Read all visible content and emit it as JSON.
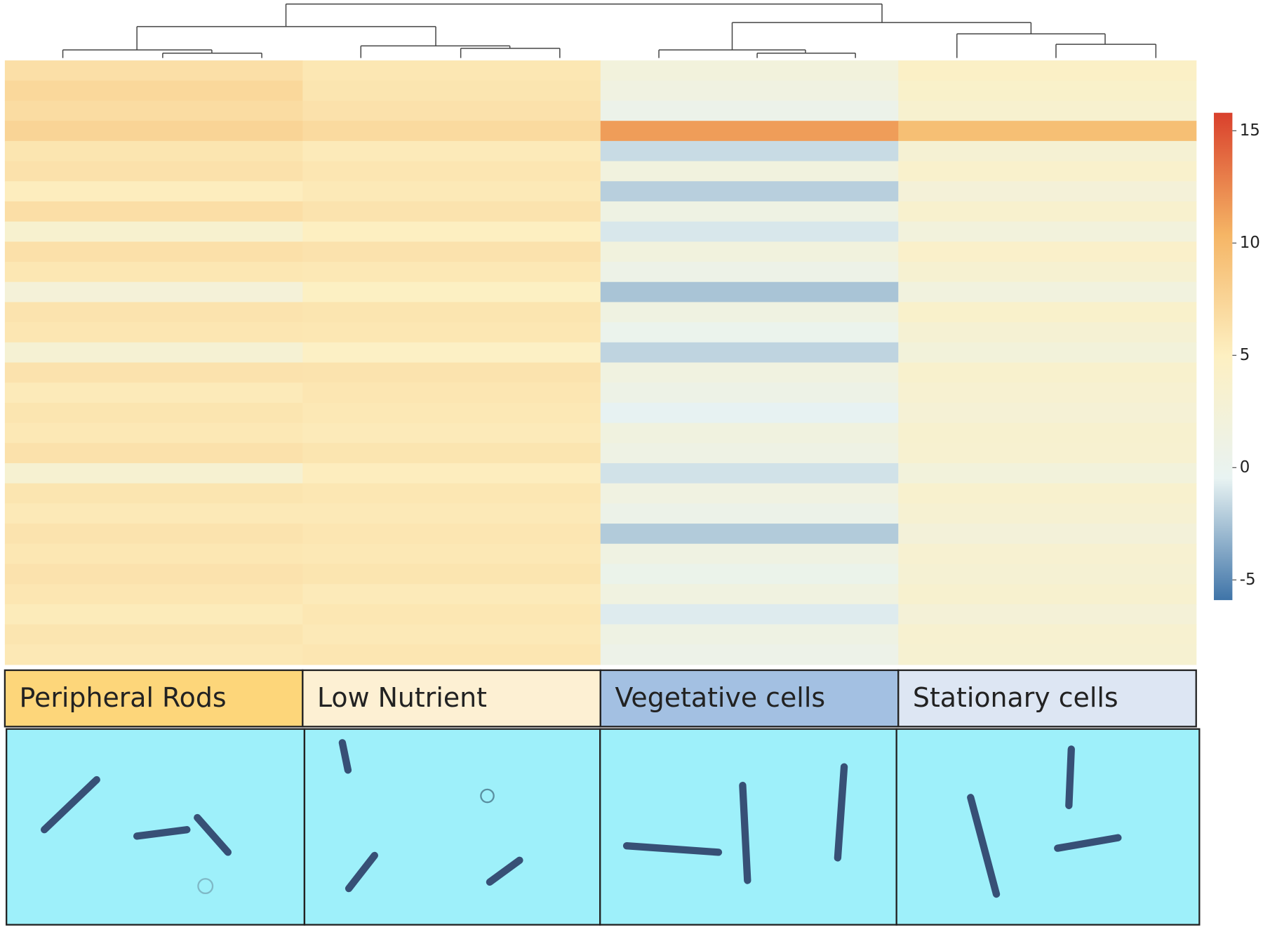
{
  "chart_data": {
    "type": "heatmap",
    "categories": [
      "Peripheral Rods",
      "Low Nutrient",
      "Vegetative cells",
      "Stationary cells"
    ],
    "group_colors": [
      "#fdd67a",
      "#fdf0d3",
      "#a3c0e2",
      "#dde6f3"
    ],
    "values": [
      [
        6.5,
        5.8,
        2.0,
        4.5
      ],
      [
        7.2,
        6.0,
        1.5,
        4.0
      ],
      [
        6.8,
        6.3,
        0.5,
        3.5
      ],
      [
        7.5,
        7.0,
        11.5,
        9.5
      ],
      [
        6.0,
        5.5,
        -1.5,
        3.0
      ],
      [
        6.3,
        5.9,
        1.8,
        3.8
      ],
      [
        5.2,
        5.6,
        -2.0,
        2.5
      ],
      [
        6.6,
        6.1,
        1.2,
        3.6
      ],
      [
        3.5,
        5.0,
        -1.0,
        2.0
      ],
      [
        6.4,
        6.2,
        1.9,
        4.1
      ],
      [
        5.8,
        5.7,
        0.8,
        3.2
      ],
      [
        2.5,
        4.8,
        -2.5,
        1.8
      ],
      [
        6.1,
        6.0,
        1.4,
        3.9
      ],
      [
        5.9,
        5.8,
        0.2,
        3.0
      ],
      [
        3.0,
        4.6,
        -1.8,
        2.2
      ],
      [
        6.2,
        6.1,
        1.6,
        3.7
      ],
      [
        5.5,
        5.9,
        0.9,
        3.3
      ],
      [
        6.0,
        5.7,
        -0.5,
        2.8
      ],
      [
        5.7,
        5.5,
        1.7,
        3.5
      ],
      [
        6.3,
        6.0,
        1.1,
        3.4
      ],
      [
        3.2,
        5.2,
        -1.2,
        2.1
      ],
      [
        6.0,
        5.8,
        1.5,
        3.6
      ],
      [
        5.6,
        5.6,
        0.6,
        3.1
      ],
      [
        6.1,
        5.9,
        -2.2,
        2.4
      ],
      [
        5.8,
        5.7,
        1.3,
        3.3
      ],
      [
        6.2,
        6.0,
        0.4,
        3.0
      ],
      [
        5.9,
        5.5,
        1.6,
        3.5
      ],
      [
        5.4,
        5.8,
        -0.8,
        2.6
      ],
      [
        6.0,
        5.6,
        1.2,
        3.4
      ],
      [
        5.7,
        5.9,
        0.7,
        3.2
      ]
    ],
    "zlim": [
      -5.9,
      15.8
    ],
    "zticks": [
      15,
      10,
      5,
      0,
      -5
    ],
    "colorscale": [
      "#3f74a8",
      "#e8f3f2",
      "#fdf0c2",
      "#f5b565",
      "#d9402c"
    ]
  }
}
